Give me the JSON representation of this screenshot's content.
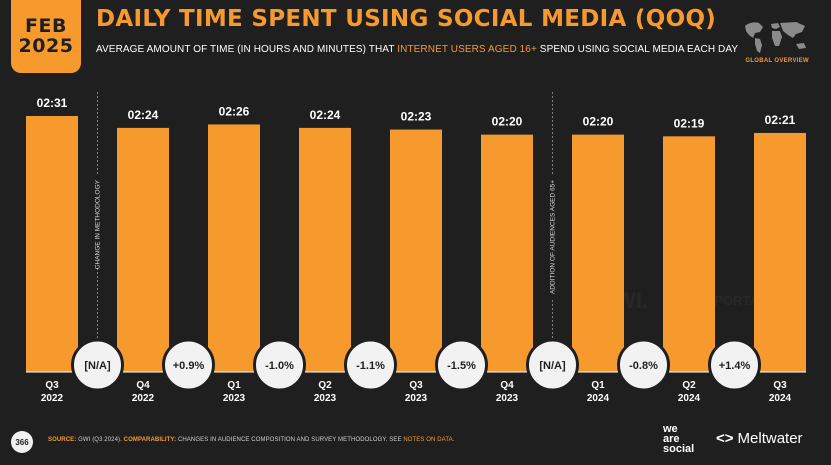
{
  "header": {
    "month": "FEB",
    "year": "2025",
    "title": "DAILY TIME SPENT USING SOCIAL MEDIA (QOQ)",
    "subtitle_pre": "AVERAGE AMOUNT OF TIME (IN HOURS AND MINUTES) THAT ",
    "subtitle_highlight": "INTERNET USERS AGED 16+",
    "subtitle_post": " SPEND USING SOCIAL MEDIA EACH DAY",
    "region_label": "GLOBAL OVERVIEW"
  },
  "watermark": {
    "gwi": "GWI.",
    "datareportal": "DATAREPORTAL"
  },
  "chart_data": {
    "type": "bar",
    "categories": [
      [
        "Q3",
        "2022"
      ],
      [
        "Q4",
        "2022"
      ],
      [
        "Q1",
        "2023"
      ],
      [
        "Q2",
        "2023"
      ],
      [
        "Q3",
        "2023"
      ],
      [
        "Q4",
        "2023"
      ],
      [
        "Q1",
        "2024"
      ],
      [
        "Q2",
        "2024"
      ],
      [
        "Q3",
        "2024"
      ]
    ],
    "values_minutes": [
      151,
      144,
      146,
      144,
      143,
      140,
      140,
      139,
      141
    ],
    "value_labels": [
      "02:31",
      "02:24",
      "02:26",
      "02:24",
      "02:23",
      "02:20",
      "02:20",
      "02:19",
      "02:21"
    ],
    "change_labels": [
      "[N/A]",
      "+0.9%",
      "-1.0%",
      "-1.1%",
      "-1.5%",
      "[N/A]",
      "-0.8%",
      "+1.4%"
    ],
    "annotations": [
      {
        "between": [
          0,
          1
        ],
        "text": "CHANGE IN METHODOLOGY"
      },
      {
        "between": [
          5,
          6
        ],
        "text": "ADDITION OF AUDIENCES AGED 65+"
      }
    ],
    "bar_color": "#f79a2e",
    "y_min": 0,
    "y_max": 151
  },
  "footer": {
    "page_number": "366",
    "source_label": "SOURCE:",
    "source_text": " GWI (Q3 2024). ",
    "comparability_label": "COMPARABILITY:",
    "comparability_text": " CHANGES IN AUDIENCE COMPOSITION AND SURVEY METHODOLOGY. SEE ",
    "notes_link": "NOTES ON DATA",
    "end": ".",
    "brand1": [
      "we",
      "are",
      "social"
    ],
    "brand2": "Meltwater"
  }
}
